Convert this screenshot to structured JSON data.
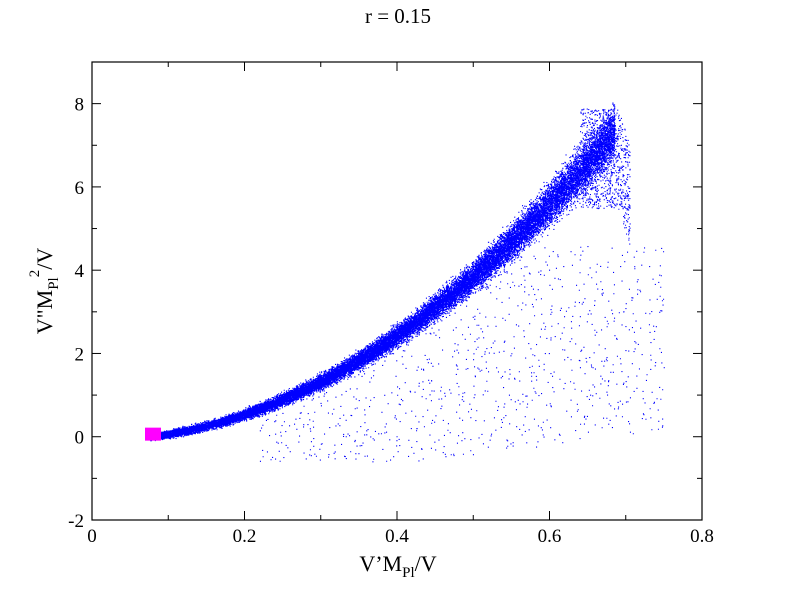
{
  "chart_data": {
    "type": "scatter",
    "title": "r = 0.15",
    "xlabel": {
      "base": "V’M",
      "sub": "Pl",
      "tail": "/V"
    },
    "ylabel": {
      "base": "V\"M",
      "sub": "Pl",
      "sup": "2",
      "tail": "/V"
    },
    "xlim": [
      0,
      0.8
    ],
    "ylim": [
      -2,
      9
    ],
    "x_ticks": [
      0,
      0.2,
      0.4,
      0.6,
      0.8
    ],
    "x_tick_labels": [
      "0",
      "0.2",
      "0.4",
      "0.6",
      "0.8"
    ],
    "y_ticks": [
      -2,
      0,
      2,
      4,
      6,
      8
    ],
    "y_tick_labels": [
      "-2",
      "0",
      "2",
      "4",
      "6",
      "8"
    ],
    "grid": false,
    "legend": "none",
    "series": [
      {
        "color": "#0000ff",
        "marker": "dot",
        "band": {
          "x_range": [
            0.075,
            0.705
          ],
          "center_curve": "y ≈ 15.8·x² − 0.09 (band widening with x, reaching y≈8.4 at x≈0.68)",
          "approx_points": 60000
        },
        "sparse_region": {
          "x_range": [
            0.22,
            0.75
          ],
          "y_range": [
            -0.6,
            4.6
          ],
          "approx_points": 900
        }
      },
      {
        "color": "#ff00ff",
        "marker": "square",
        "points": [
          [
            0.08,
            0.05
          ]
        ]
      }
    ]
  }
}
